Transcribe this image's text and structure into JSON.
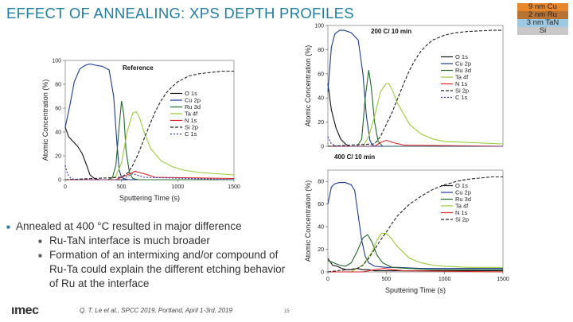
{
  "slide": {
    "title": "EFFECT OF ANNEALING: XPS DEPTH PROFILES",
    "stack_layers": [
      {
        "label": "9 nm Cu",
        "color": "#e8862a"
      },
      {
        "label": "2 nm Ru",
        "color": "#b87333"
      },
      {
        "label": "3 nm TaN",
        "color": "#9ec9e2"
      },
      {
        "label": "Si",
        "color": "#c8c8c8"
      }
    ],
    "bullets": [
      {
        "level": 1,
        "text": "Annealed at 400 °C resulted in major difference"
      },
      {
        "level": 2,
        "text": "Ru-TaN interface is much broader"
      },
      {
        "level": 2,
        "text": "Formation of an intermixing and/or compound of Ru-Ta could explain the different etching behavior of Ru at the interface"
      }
    ],
    "logo": "ımec",
    "citation": "Q. T. Le et al., SPCC 2019, Portland, April 1-3rd, 2019",
    "page_number": "15"
  },
  "chart_data": [
    {
      "type": "line",
      "title": "Reference",
      "xlabel": "Sputtering Time (s)",
      "ylabel": "Atomic Concentration (%)",
      "xlim": [
        0,
        1500
      ],
      "ylim": [
        0,
        100
      ],
      "xticks": [
        0,
        500,
        1000,
        1500
      ],
      "yticks": [
        0,
        20,
        40,
        60,
        80,
        100
      ],
      "series": [
        {
          "name": "O 1s",
          "color": "#111111",
          "dash": "",
          "x": [
            0,
            30,
            70,
            110,
            150,
            190,
            220,
            260,
            300,
            1500
          ],
          "y": [
            44,
            36,
            32,
            28,
            22,
            12,
            4,
            1,
            0,
            0
          ]
        },
        {
          "name": "Cu 2p",
          "color": "#1a3a9a",
          "dash": "",
          "x": [
            0,
            40,
            80,
            130,
            180,
            220,
            270,
            330,
            390,
            430,
            460,
            480,
            500,
            520,
            560,
            1500
          ],
          "y": [
            44,
            62,
            82,
            93,
            96,
            97,
            96,
            95,
            92,
            70,
            30,
            8,
            2,
            1,
            0,
            0
          ]
        },
        {
          "name": "Ru 3d",
          "color": "#1f6a2a",
          "dash": "",
          "x": [
            0,
            380,
            420,
            450,
            480,
            500,
            520,
            540,
            570,
            600,
            650,
            1500
          ],
          "y": [
            0,
            0,
            2,
            12,
            45,
            66,
            55,
            25,
            6,
            1,
            0,
            0
          ]
        },
        {
          "name": "Ta 4f",
          "color": "#9acd32",
          "dash": "",
          "x": [
            0,
            400,
            450,
            500,
            550,
            600,
            630,
            660,
            700,
            760,
            850,
            950,
            1050,
            1200,
            1350,
            1500
          ],
          "y": [
            0,
            0,
            3,
            14,
            40,
            56,
            57,
            52,
            40,
            26,
            16,
            11,
            8,
            6,
            5,
            4
          ]
        },
        {
          "name": "N 1s",
          "color": "#dd2222",
          "dash": "",
          "x": [
            0,
            450,
            550,
            620,
            700,
            800,
            1500
          ],
          "y": [
            0,
            0,
            4,
            7,
            5,
            2,
            1
          ]
        },
        {
          "name": "Si 2p",
          "color": "#222222",
          "dash": "4,2",
          "x": [
            0,
            500,
            560,
            600,
            650,
            700,
            750,
            800,
            850,
            900,
            950,
            1000,
            1100,
            1200,
            1300,
            1400,
            1500
          ],
          "y": [
            0,
            2,
            6,
            12,
            22,
            34,
            46,
            57,
            66,
            73,
            78,
            82,
            87,
            89,
            90,
            91,
            91
          ]
        },
        {
          "name": "C 1s",
          "color": "#3333bb",
          "dash": "2,2",
          "x": [
            0,
            20,
            50,
            100,
            500,
            600,
            700,
            1500
          ],
          "y": [
            12,
            5,
            1,
            0,
            0,
            5,
            2,
            0
          ]
        }
      ]
    },
    {
      "type": "line",
      "title": "200 C/ 10 min",
      "xlabel": "",
      "ylabel": "Atomic Concentration (%)",
      "xlim": [
        0,
        1500
      ],
      "ylim": [
        0,
        100
      ],
      "xticks": [],
      "yticks": [
        0,
        20,
        40,
        60,
        80,
        100
      ],
      "series": [
        {
          "name": "O 1s",
          "color": "#111111",
          "dash": "",
          "x": [
            0,
            30,
            70,
            110,
            150,
            180,
            220,
            1500
          ],
          "y": [
            52,
            30,
            15,
            6,
            2,
            0,
            0,
            0
          ]
        },
        {
          "name": "Cu 2p",
          "color": "#1a3a9a",
          "dash": "",
          "x": [
            0,
            30,
            60,
            100,
            140,
            200,
            260,
            300,
            330,
            360,
            380,
            400,
            1500
          ],
          "y": [
            45,
            82,
            93,
            96,
            96,
            94,
            88,
            60,
            25,
            5,
            1,
            0,
            0
          ]
        },
        {
          "name": "Ru 3d",
          "color": "#1f6a2a",
          "dash": "",
          "x": [
            0,
            250,
            290,
            320,
            350,
            370,
            400,
            430,
            470,
            1500
          ],
          "y": [
            0,
            0,
            6,
            40,
            63,
            50,
            20,
            4,
            0,
            0
          ]
        },
        {
          "name": "Ta 4f",
          "color": "#9acd32",
          "dash": "",
          "x": [
            0,
            300,
            350,
            400,
            450,
            500,
            520,
            550,
            600,
            700,
            800,
            900,
            1000,
            1500
          ],
          "y": [
            0,
            0,
            8,
            25,
            45,
            52,
            52,
            47,
            35,
            18,
            10,
            6,
            4,
            2
          ]
        },
        {
          "name": "N 1s",
          "color": "#dd2222",
          "dash": "",
          "x": [
            0,
            400,
            450,
            500,
            560,
            650,
            1500
          ],
          "y": [
            0,
            0,
            3,
            5,
            3,
            1,
            0
          ]
        },
        {
          "name": "Si 2p",
          "color": "#222222",
          "dash": "4,2",
          "x": [
            0,
            400,
            450,
            500,
            550,
            600,
            650,
            700,
            750,
            800,
            850,
            900,
            1000,
            1100,
            1200,
            1400,
            1500
          ],
          "y": [
            0,
            2,
            8,
            18,
            28,
            40,
            52,
            63,
            72,
            79,
            84,
            88,
            92,
            94,
            95,
            96,
            96
          ]
        },
        {
          "name": "C 1s",
          "color": "#3333bb",
          "dash": "2,2",
          "x": [
            0,
            30,
            80,
            1500
          ],
          "y": [
            8,
            2,
            0,
            0
          ]
        }
      ]
    },
    {
      "type": "line",
      "title": "400 C/ 10 min",
      "xlabel": "Sputtering Time (s)",
      "ylabel": "Atomic Concentration (%)",
      "xlim": [
        0,
        1500
      ],
      "ylim": [
        0,
        90
      ],
      "xticks": [
        0,
        500,
        1000,
        1500
      ],
      "yticks": [
        0,
        20,
        40,
        60,
        80
      ],
      "series": [
        {
          "name": "O 1s",
          "color": "#111111",
          "dash": "",
          "x": [
            0,
            40,
            80,
            120,
            160,
            200,
            250,
            300,
            350,
            400,
            450,
            1500
          ],
          "y": [
            12,
            6,
            5,
            3,
            2,
            2,
            3,
            2,
            2,
            1,
            1,
            1
          ]
        },
        {
          "name": "Cu 2p",
          "color": "#1a3a9a",
          "dash": "",
          "x": [
            0,
            30,
            60,
            100,
            150,
            200,
            230,
            260,
            290,
            320,
            350,
            400,
            500,
            600,
            800,
            1000,
            1200,
            1500
          ],
          "y": [
            60,
            75,
            78,
            79,
            79,
            77,
            72,
            50,
            28,
            14,
            8,
            5,
            4,
            4,
            3,
            3,
            3,
            3
          ]
        },
        {
          "name": "Ru 3d",
          "color": "#1f6a2a",
          "dash": "",
          "x": [
            0,
            50,
            100,
            150,
            200,
            250,
            300,
            340,
            380,
            420,
            470,
            550,
            700,
            900,
            1100,
            1500
          ],
          "y": [
            10,
            8,
            6,
            5,
            8,
            18,
            30,
            33,
            26,
            15,
            8,
            4,
            3,
            2,
            2,
            2
          ]
        },
        {
          "name": "Ta 4f",
          "color": "#9acd32",
          "dash": "",
          "x": [
            0,
            200,
            300,
            380,
            420,
            460,
            500,
            540,
            600,
            700,
            800,
            900,
            1000,
            1200,
            1500
          ],
          "y": [
            0,
            0,
            6,
            18,
            28,
            34,
            34,
            30,
            22,
            12,
            8,
            6,
            5,
            4,
            4
          ]
        },
        {
          "name": "N 1s",
          "color": "#dd2222",
          "dash": "",
          "x": [
            0,
            300,
            400,
            480,
            560,
            650,
            1500
          ],
          "y": [
            0,
            0,
            2,
            3,
            2,
            1,
            0
          ]
        },
        {
          "name": "Si 2p",
          "color": "#222222",
          "dash": "4,2",
          "x": [
            0,
            250,
            300,
            350,
            400,
            450,
            500,
            550,
            600,
            700,
            800,
            900,
            1000,
            1100,
            1200,
            1300,
            1400,
            1500
          ],
          "y": [
            0,
            3,
            6,
            12,
            20,
            28,
            35,
            43,
            50,
            60,
            67,
            73,
            77,
            80,
            82,
            83,
            84,
            84
          ]
        }
      ]
    }
  ]
}
